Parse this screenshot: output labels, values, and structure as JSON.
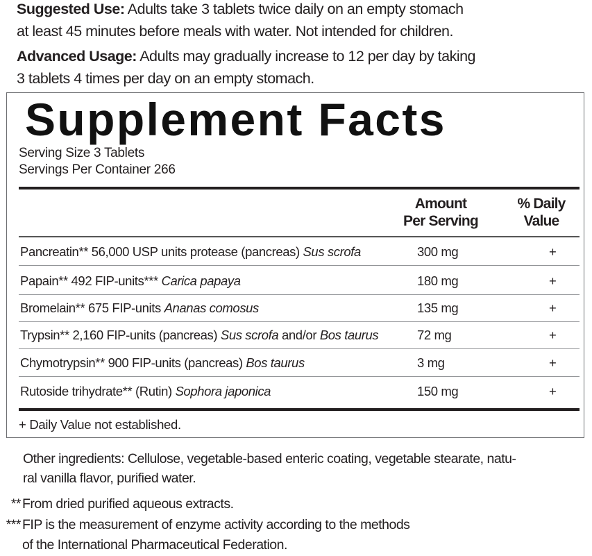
{
  "suggested_use": {
    "label": "Suggested Use:",
    "lines": [
      " Adults take 3 tablets twice daily on an empty stomach",
      "at least 45 minutes before meals with water. Not intended for children."
    ]
  },
  "advanced_usage": {
    "label": "Advanced Usage:",
    "lines": [
      " Adults may gradually increase to 12 per day by taking",
      "3 tablets 4 times per day on an empty stomach."
    ]
  },
  "facts": {
    "title": "Supplement Facts",
    "serving_size": "Serving Size 3 Tablets",
    "servings_per_container": "Servings Per Container 266",
    "col_amount": [
      "Amount",
      "Per Serving"
    ],
    "col_dv": [
      "% Daily",
      "Value"
    ],
    "rows": [
      {
        "parts": [
          {
            "t": "Pancreatin** 56,000 USP units protease (pancreas) "
          },
          {
            "t": "Sus scrofa",
            "i": true
          }
        ],
        "amount": "300 mg",
        "dv": "+"
      },
      {
        "parts": [
          {
            "t": "Papain** 492 FIP-units*** "
          },
          {
            "t": "Carica papaya",
            "i": true
          }
        ],
        "amount": "180 mg",
        "dv": "+"
      },
      {
        "parts": [
          {
            "t": "Bromelain** 675 FIP-units "
          },
          {
            "t": "Ananas comosus",
            "i": true
          }
        ],
        "amount": "135 mg",
        "dv": "+"
      },
      {
        "parts": [
          {
            "t": "Trypsin** 2,160 FIP-units (pancreas) "
          },
          {
            "t": "Sus scrofa",
            "i": true
          },
          {
            "t": " and/or "
          },
          {
            "t": "Bos taurus",
            "i": true
          }
        ],
        "amount": "72 mg",
        "dv": "+"
      },
      {
        "parts": [
          {
            "t": "Chymotrypsin** 900 FIP-units (pancreas) "
          },
          {
            "t": "Bos taurus",
            "i": true
          }
        ],
        "amount": "3 mg",
        "dv": "+"
      },
      {
        "parts": [
          {
            "t": "Rutoside trihydrate** (Rutin) "
          },
          {
            "t": "Sophora japonica",
            "i": true
          }
        ],
        "amount": "150 mg",
        "dv": "+"
      }
    ],
    "footnote": "+ Daily Value not established."
  },
  "other_ingredients": [
    "Other ingredients: Cellulose, vegetable-based enteric coating, vegetable stearate, natu-",
    "ral vanilla flavor, purified water."
  ],
  "footnotes": [
    {
      "mark": "**",
      "lines": [
        "From dried purified aqueous extracts."
      ]
    },
    {
      "mark": "***",
      "lines": [
        "FIP is the measurement of enzyme activity according to the methods",
        "of the International Pharmaceutical Federation."
      ]
    }
  ]
}
